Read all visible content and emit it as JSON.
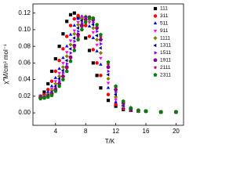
{
  "chart_data": {
    "type": "scatter",
    "x_label": "T/K",
    "y_label": "χ″M/cm³ mol⁻¹",
    "x": [
      2,
      2.5,
      3,
      3.5,
      4,
      4.5,
      5,
      5.5,
      6,
      6.5,
      7,
      7.5,
      8,
      8.5,
      9,
      9.5,
      10,
      11,
      12,
      13,
      14,
      15,
      16,
      18,
      20
    ],
    "xlim": [
      1,
      21
    ],
    "xticks": [
      4,
      8,
      12,
      16,
      20
    ],
    "ylim": [
      -0.015,
      0.131
    ],
    "yticks": [
      {
        "value": 0,
        "label": "0.00"
      },
      {
        "value": 0.02,
        "label": "0.02"
      },
      {
        "value": 0.04,
        "label": "0.04"
      },
      {
        "value": 0.06,
        "label": "0.06"
      },
      {
        "value": 0.08,
        "label": "0.08"
      },
      {
        "value": 0.1,
        "label": "0.10"
      },
      {
        "value": 0.12,
        "label": "0.12"
      }
    ],
    "legend": "upper right",
    "series": [
      {
        "name": "111",
        "color": "#000000",
        "marker": "square",
        "values": [
          0.02,
          0.025,
          0.035,
          0.05,
          0.065,
          0.08,
          0.095,
          0.11,
          0.118,
          0.12,
          0.115,
          0.105,
          0.09,
          0.075,
          0.06,
          0.045,
          0.03,
          0.015,
          0.008,
          0.004,
          0.003,
          0.002,
          0.002,
          0.001,
          0.001
        ]
      },
      {
        "name": "311",
        "color": "#ff0000",
        "marker": "circle",
        "values": [
          0.02,
          0.022,
          0.028,
          0.038,
          0.05,
          0.063,
          0.077,
          0.092,
          0.105,
          0.113,
          0.117,
          0.114,
          0.105,
          0.092,
          0.076,
          0.06,
          0.045,
          0.022,
          0.01,
          0.005,
          0.003,
          0.002,
          0.002,
          0.001,
          0.001
        ]
      },
      {
        "name": "511",
        "color": "#0000ff",
        "marker": "triangle-up",
        "values": [
          0.02,
          0.021,
          0.025,
          0.032,
          0.042,
          0.053,
          0.066,
          0.08,
          0.094,
          0.105,
          0.113,
          0.116,
          0.113,
          0.104,
          0.09,
          0.074,
          0.058,
          0.03,
          0.013,
          0.006,
          0.003,
          0.002,
          0.002,
          0.001,
          0.001
        ]
      },
      {
        "name": "911",
        "color": "#ff00ff",
        "marker": "triangle-down",
        "values": [
          0.02,
          0.02,
          0.023,
          0.029,
          0.038,
          0.048,
          0.06,
          0.073,
          0.087,
          0.099,
          0.109,
          0.115,
          0.115,
          0.109,
          0.097,
          0.082,
          0.066,
          0.036,
          0.016,
          0.007,
          0.004,
          0.002,
          0.002,
          0.001,
          0.001
        ]
      },
      {
        "name": "1111",
        "color": "#808000",
        "marker": "diamond",
        "values": [
          0.019,
          0.02,
          0.022,
          0.027,
          0.035,
          0.044,
          0.055,
          0.068,
          0.082,
          0.095,
          0.106,
          0.113,
          0.116,
          0.112,
          0.102,
          0.088,
          0.072,
          0.041,
          0.019,
          0.008,
          0.004,
          0.002,
          0.002,
          0.001,
          0.001
        ]
      },
      {
        "name": "1311",
        "color": "#000080",
        "marker": "triangle-left",
        "values": [
          0.019,
          0.019,
          0.021,
          0.025,
          0.032,
          0.041,
          0.051,
          0.063,
          0.077,
          0.09,
          0.102,
          0.111,
          0.115,
          0.114,
          0.106,
          0.093,
          0.078,
          0.046,
          0.022,
          0.009,
          0.004,
          0.003,
          0.002,
          0.001,
          0.001
        ]
      },
      {
        "name": "1511",
        "color": "#8000ff",
        "marker": "triangle-right",
        "values": [
          0.018,
          0.019,
          0.02,
          0.024,
          0.03,
          0.038,
          0.048,
          0.059,
          0.072,
          0.086,
          0.098,
          0.108,
          0.114,
          0.115,
          0.109,
          0.098,
          0.083,
          0.05,
          0.025,
          0.01,
          0.005,
          0.003,
          0.002,
          0.001,
          0.001
        ]
      },
      {
        "name": "1911",
        "color": "#800080",
        "marker": "hexagon",
        "values": [
          0.018,
          0.018,
          0.02,
          0.023,
          0.028,
          0.035,
          0.044,
          0.055,
          0.067,
          0.081,
          0.094,
          0.105,
          0.112,
          0.115,
          0.112,
          0.102,
          0.088,
          0.055,
          0.028,
          0.012,
          0.005,
          0.003,
          0.002,
          0.001,
          0.001
        ]
      },
      {
        "name": "2111",
        "color": "#c00060",
        "marker": "star",
        "values": [
          0.018,
          0.018,
          0.019,
          0.022,
          0.027,
          0.034,
          0.042,
          0.053,
          0.065,
          0.078,
          0.091,
          0.103,
          0.111,
          0.115,
          0.113,
          0.104,
          0.091,
          0.058,
          0.03,
          0.013,
          0.006,
          0.003,
          0.002,
          0.001,
          0.001
        ]
      },
      {
        "name": "2311",
        "color": "#008000",
        "marker": "pentagon",
        "values": [
          0.017,
          0.018,
          0.019,
          0.021,
          0.026,
          0.032,
          0.04,
          0.05,
          0.062,
          0.075,
          0.088,
          0.1,
          0.109,
          0.114,
          0.114,
          0.106,
          0.094,
          0.061,
          0.032,
          0.014,
          0.006,
          0.003,
          0.002,
          0.001,
          0.001
        ]
      }
    ]
  }
}
